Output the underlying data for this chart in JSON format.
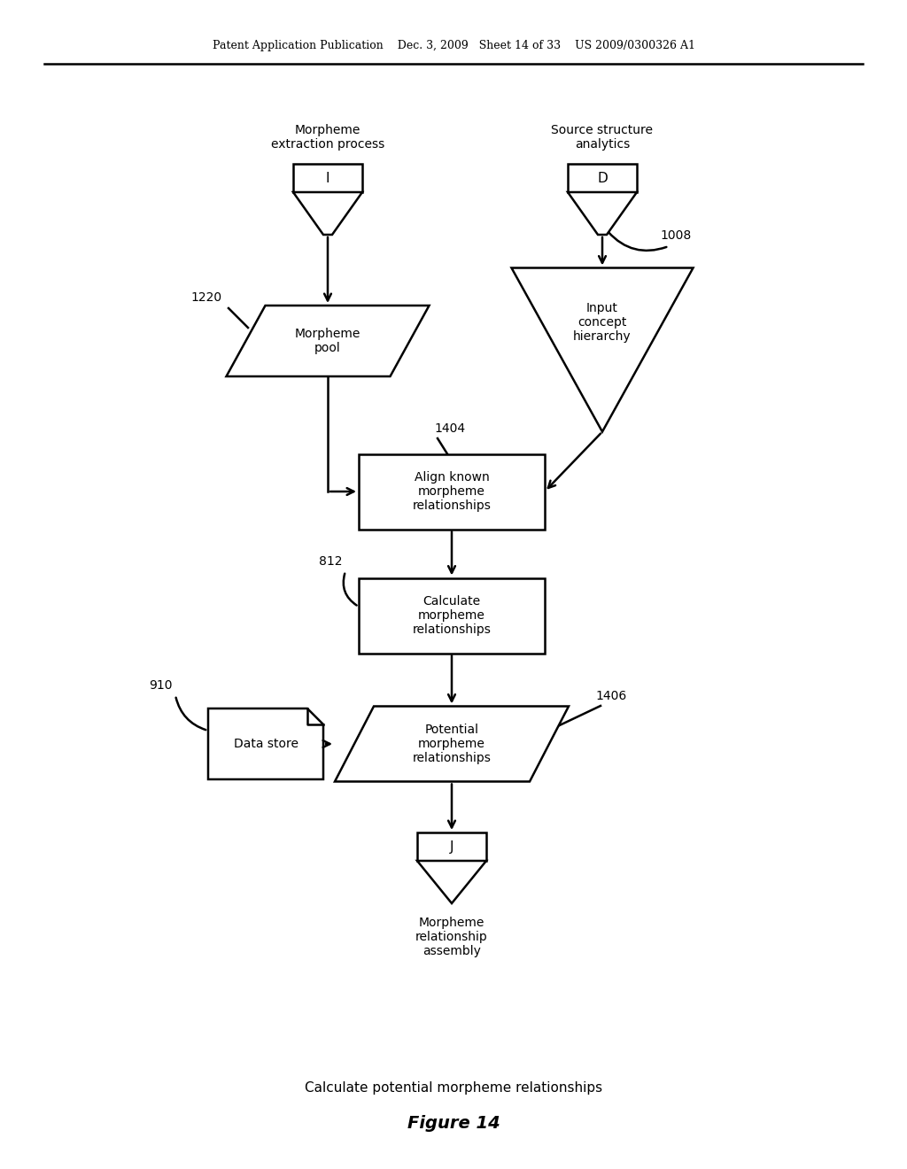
{
  "bg_color": "#ffffff",
  "header_text": "Patent Application Publication    Dec. 3, 2009   Sheet 14 of 33    US 2009/0300326 A1",
  "footer_caption": "Calculate potential morpheme relationships",
  "figure_label": "Figure 14",
  "fig_w": 10.24,
  "fig_h": 13.2
}
